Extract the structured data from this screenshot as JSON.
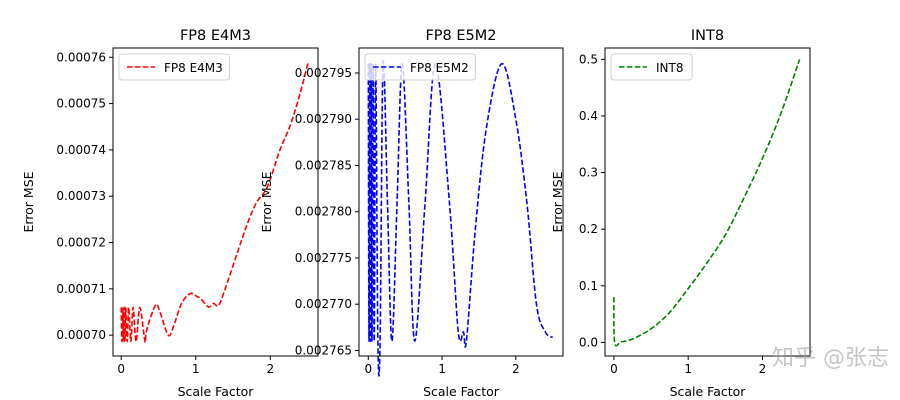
{
  "watermark": "知乎 @张志",
  "chart_data": [
    {
      "type": "line",
      "title": "FP8 E4M3",
      "xlabel": "Scale Factor",
      "ylabel": "Error MSE",
      "xlim": [
        -0.11,
        2.64
      ],
      "ylim": [
        0.0006955,
        0.000762
      ],
      "xticks": [
        0,
        1,
        2
      ],
      "xtick_labels": [
        "0",
        "1",
        "2"
      ],
      "yticks": [
        0.0007,
        0.00071,
        0.00072,
        0.00073,
        0.00074,
        0.00075,
        0.00076
      ],
      "ytick_labels": [
        "0.00070",
        "0.00071",
        "0.00072",
        "0.00073",
        "0.00074",
        "0.00075",
        "0.00076"
      ],
      "grid": false,
      "legend_position": "upper-left",
      "series": [
        {
          "name": "FP8 E4M3",
          "color": "#ff0000",
          "style": "dashed",
          "x": [
            0,
            0.01,
            0.02,
            0.03,
            0.04,
            0.05,
            0.06,
            0.08,
            0.1,
            0.13,
            0.16,
            0.2,
            0.25,
            0.32,
            0.34,
            0.46,
            0.52,
            0.63,
            0.7,
            0.81,
            0.93,
            1.02,
            1.06,
            1.17,
            1.24,
            1.31,
            1.42,
            1.6,
            1.71,
            1.82,
            1.96,
            2.13,
            2.27,
            2.4,
            2.51
          ],
          "y": [
            0.000706,
            0.0006986,
            0.000706,
            0.0006986,
            0.000706,
            0.0006986,
            0.000706,
            0.0006986,
            0.000706,
            0.0006986,
            0.000706,
            0.0006986,
            0.000706,
            0.0006986,
            0.000701,
            0.0007065,
            0.000705,
            0.0007,
            0.0007018,
            0.00070685,
            0.000709,
            0.0007083,
            0.000708,
            0.0007061,
            0.00070685,
            0.0007065,
            0.0007112,
            0.0007198,
            0.0007248,
            0.0007288,
            0.000732,
            0.00074,
            0.0007454,
            0.0007522,
            0.000759
          ]
        }
      ]
    },
    {
      "type": "line",
      "title": "FP8 E5M2",
      "xlabel": "Scale Factor",
      "ylabel": "Error MSE",
      "xlim": [
        -0.126,
        2.64
      ],
      "ylim": [
        0.0027644,
        0.0027977
      ],
      "xticks": [
        0,
        1,
        2
      ],
      "xtick_labels": [
        "0",
        "1",
        "2"
      ],
      "yticks": [
        0.002765,
        0.00277,
        0.002775,
        0.00278,
        0.002785,
        0.00279,
        0.002795
      ],
      "ytick_labels": [
        "0.002765",
        "0.002770",
        "0.002775",
        "0.002780",
        "0.002785",
        "0.002790",
        "0.002795"
      ],
      "grid": false,
      "legend_position": "upper-left",
      "series": [
        {
          "name": "FP8 E5M2",
          "color": "#0000ff",
          "style": "dashed",
          "x": [
            0,
            0.01,
            0.02,
            0.03,
            0.04,
            0.05,
            0.065,
            0.08,
            0.1,
            0.13,
            0.16,
            0.2,
            0.26,
            0.32,
            0.39,
            0.46,
            0.55,
            0.63,
            0.77,
            0.91,
            1.1,
            1.22,
            1.29,
            1.33,
            1.45,
            1.6,
            1.81,
            2.0,
            2.15,
            2.28,
            2.4,
            2.5
          ],
          "y": [
            0.002796,
            0.002766,
            0.002796,
            0.002766,
            0.002796,
            0.002766,
            0.002796,
            0.002766,
            0.002796,
            0.002766,
            0.002766,
            0.002796,
            0.002781,
            0.002766,
            0.002781,
            0.002796,
            0.002781,
            0.002766,
            0.002781,
            0.002796,
            0.002781,
            0.002767,
            0.002767,
            0.002766,
            0.002778,
            0.002789,
            0.002796,
            0.00279,
            0.002781,
            0.00277,
            0.002767,
            0.0027664
          ]
        }
      ]
    },
    {
      "type": "line",
      "title": "INT8",
      "xlabel": "Scale Factor",
      "ylabel": "Error MSE",
      "xlim": [
        -0.12,
        2.64
      ],
      "ylim": [
        -0.024,
        0.52
      ],
      "xticks": [
        0,
        1,
        2
      ],
      "xtick_labels": [
        "0",
        "1",
        "2"
      ],
      "yticks": [
        0,
        0.1,
        0.2,
        0.3,
        0.4,
        0.5
      ],
      "ytick_labels": [
        "0.0",
        "0.1",
        "0.2",
        "0.3",
        "0.4",
        "0.5"
      ],
      "grid": false,
      "legend_position": "upper-left",
      "series": [
        {
          "name": "INT8",
          "color": "#008000",
          "style": "dashed",
          "x": [
            0,
            0.01,
            0.1,
            0.25,
            0.5,
            0.75,
            1.0,
            1.25,
            1.5,
            1.75,
            2.0,
            2.25,
            2.5
          ],
          "y": [
            0.08,
            0.0,
            0.001,
            0.006,
            0.024,
            0.053,
            0.095,
            0.14,
            0.19,
            0.255,
            0.325,
            0.405,
            0.5
          ]
        }
      ]
    }
  ]
}
